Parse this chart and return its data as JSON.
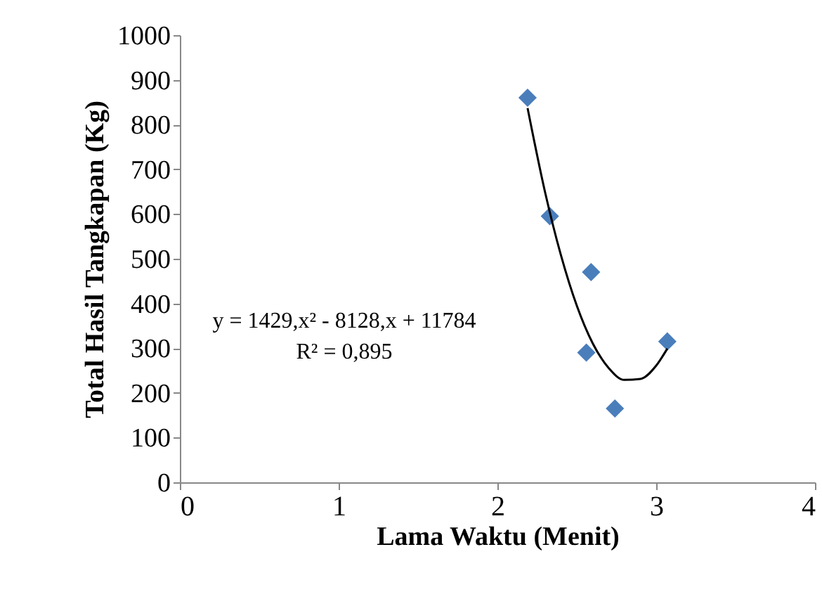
{
  "chart_data": {
    "type": "scatter",
    "xlabel": "Lama Waktu (Menit)",
    "ylabel": "Total Hasil Tangkapan (Kg)",
    "xlim": [
      0,
      4
    ],
    "xticks": [
      0,
      1,
      2,
      3,
      4
    ],
    "ylim": [
      0,
      1000
    ],
    "yticks": [
      0,
      100,
      200,
      300,
      400,
      500,
      600,
      700,
      800,
      900,
      1000
    ],
    "grid": false,
    "series": [
      {
        "marker": "diamond",
        "color": "#4a7ebb",
        "x": [
          2.19,
          2.33,
          2.59,
          2.56,
          2.74,
          3.07
        ],
        "values": [
          860,
          595,
          470,
          290,
          165,
          315
        ]
      },
      {
        "type": "line",
        "marker": "none",
        "line_style": "solid",
        "color": "#000000",
        "x": [
          2.19,
          2.3,
          2.4,
          2.5,
          2.6,
          2.7,
          2.8,
          2.9,
          3.0,
          3.07
        ],
        "values": [
          837,
          649,
          508,
          395,
          311,
          256,
          229,
          231,
          261,
          299
        ]
      }
    ],
    "annotations": [
      "y = 1429,x² - 8128,x + 11784",
      "R² = 0,895"
    ]
  }
}
